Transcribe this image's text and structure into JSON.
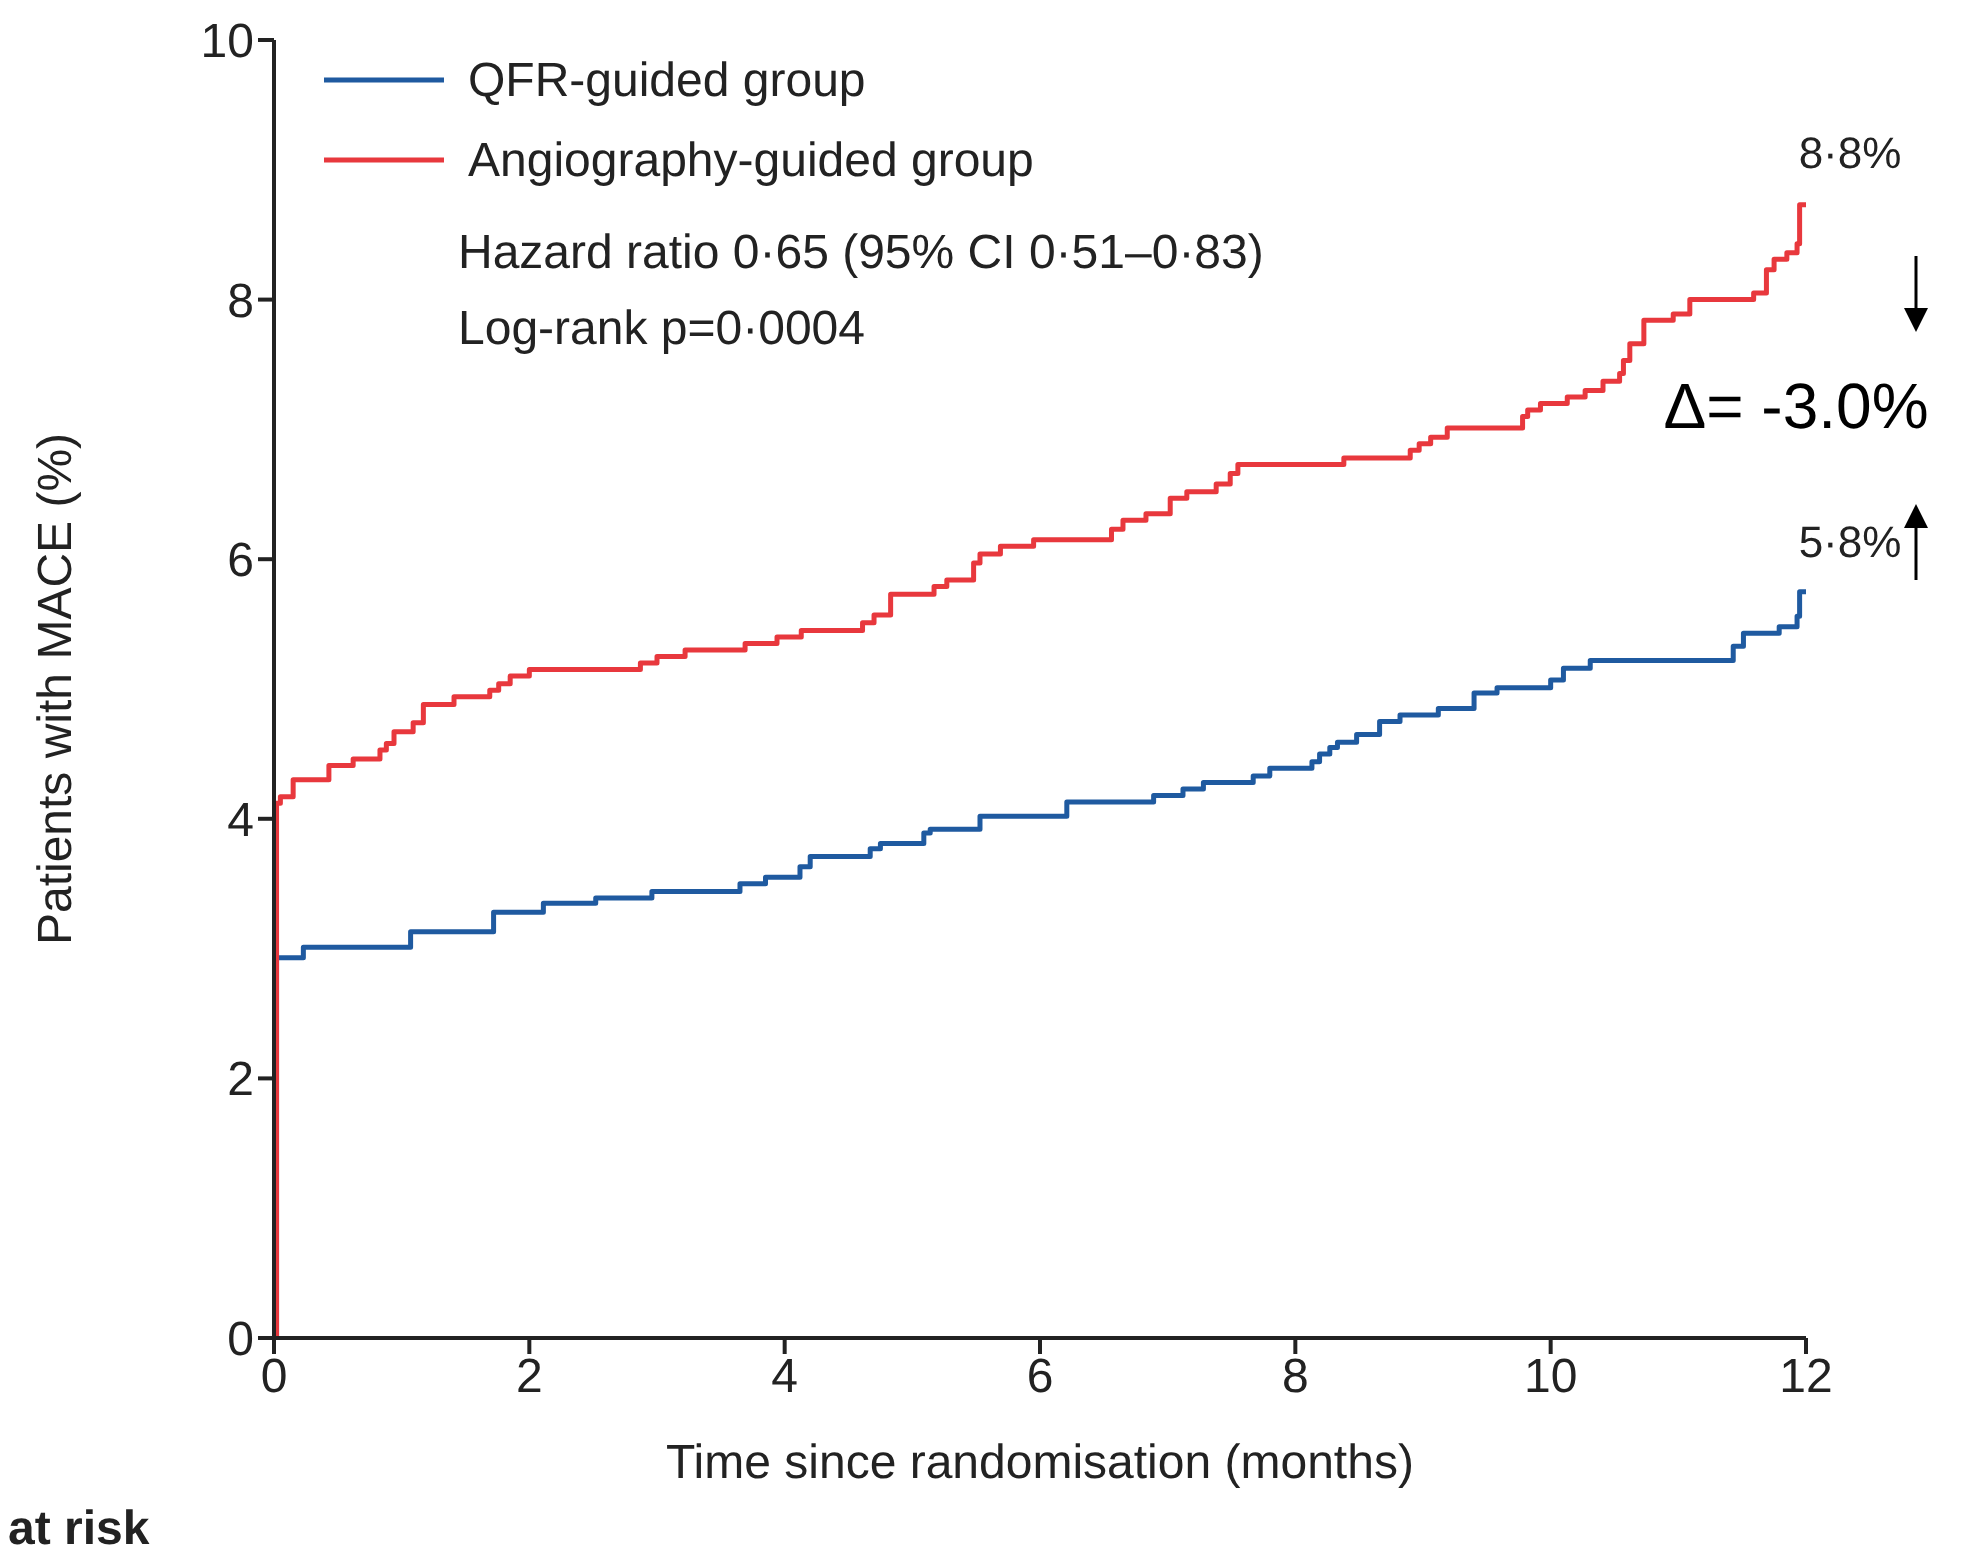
{
  "chart_data": {
    "type": "step",
    "xlabel": "Time since randomisation (months)",
    "ylabel": "Patients with MACE (%)",
    "xlim": [
      0,
      12
    ],
    "xticks": [
      0,
      2,
      4,
      6,
      8,
      10,
      12
    ],
    "ylim": [
      0,
      10
    ],
    "yticks": [
      0,
      2,
      4,
      6,
      8,
      10
    ],
    "grid": false,
    "legend": "top left",
    "marker": "none",
    "line_style": "solid",
    "series": [
      {
        "name": "QFR-guided group",
        "color": "#1f5aa0",
        "x": [
          0,
          0.02,
          0.23,
          1.07,
          1.72,
          2.11,
          2.52,
          2.96,
          3.65,
          3.85,
          4.12,
          4.2,
          4.67,
          4.75,
          5.09,
          5.14,
          5.53,
          6.21,
          6.89,
          7.12,
          7.28,
          7.67,
          7.8,
          8.13,
          8.19,
          8.27,
          8.33,
          8.48,
          8.66,
          8.82,
          9.12,
          9.4,
          9.58,
          10.0,
          10.1,
          10.31,
          11.43,
          11.51,
          11.79,
          11.93,
          11.95,
          12.0
        ],
        "values": [
          0,
          2.93,
          3.01,
          3.13,
          3.28,
          3.35,
          3.39,
          3.44,
          3.5,
          3.55,
          3.63,
          3.71,
          3.77,
          3.81,
          3.89,
          3.92,
          4.02,
          4.13,
          4.18,
          4.23,
          4.28,
          4.33,
          4.39,
          4.44,
          4.5,
          4.55,
          4.59,
          4.65,
          4.75,
          4.8,
          4.85,
          4.97,
          5.01,
          5.07,
          5.16,
          5.22,
          5.33,
          5.43,
          5.48,
          5.56,
          5.75,
          5.75
        ]
      },
      {
        "name": "Angiography-guided group",
        "color": "#e8383d",
        "x": [
          0,
          0.02,
          0.05,
          0.15,
          0.43,
          0.62,
          0.83,
          0.88,
          0.94,
          1.09,
          1.17,
          1.41,
          1.69,
          1.76,
          1.85,
          2.0,
          2.87,
          3.0,
          3.22,
          3.69,
          3.94,
          4.13,
          4.61,
          4.7,
          4.83,
          5.17,
          5.27,
          5.48,
          5.53,
          5.69,
          5.95,
          6.56,
          6.65,
          6.83,
          7.02,
          7.15,
          7.38,
          7.49,
          7.55,
          8.38,
          8.9,
          8.97,
          9.06,
          9.19,
          9.78,
          9.82,
          9.92,
          10.13,
          10.27,
          10.41,
          10.54,
          10.57,
          10.62,
          10.73,
          10.96,
          11.09,
          11.59,
          11.69,
          11.75,
          11.85,
          11.93,
          11.95,
          12.0
        ],
        "values": [
          0,
          4.12,
          4.17,
          4.3,
          4.41,
          4.46,
          4.53,
          4.58,
          4.67,
          4.74,
          4.88,
          4.94,
          4.99,
          5.04,
          5.1,
          5.15,
          5.2,
          5.25,
          5.3,
          5.35,
          5.4,
          5.45,
          5.51,
          5.57,
          5.73,
          5.79,
          5.84,
          5.97,
          6.04,
          6.1,
          6.15,
          6.23,
          6.3,
          6.35,
          6.47,
          6.52,
          6.58,
          6.66,
          6.73,
          6.78,
          6.84,
          6.89,
          6.94,
          7.01,
          7.1,
          7.15,
          7.2,
          7.25,
          7.3,
          7.37,
          7.43,
          7.53,
          7.66,
          7.84,
          7.89,
          8.0,
          8.05,
          8.23,
          8.31,
          8.36,
          8.43,
          8.73,
          8.73
        ]
      }
    ],
    "annotations": [
      "Hazard ratio 0·65 (95% CI 0·51–0·83)",
      "Log-rank p=0·0004",
      {
        "text": "8·8%",
        "x": 12,
        "y": 8.8
      },
      {
        "text": "5·8%",
        "x": 12,
        "y": 5.8
      },
      "Δ= -3.0%",
      "at risk"
    ]
  }
}
